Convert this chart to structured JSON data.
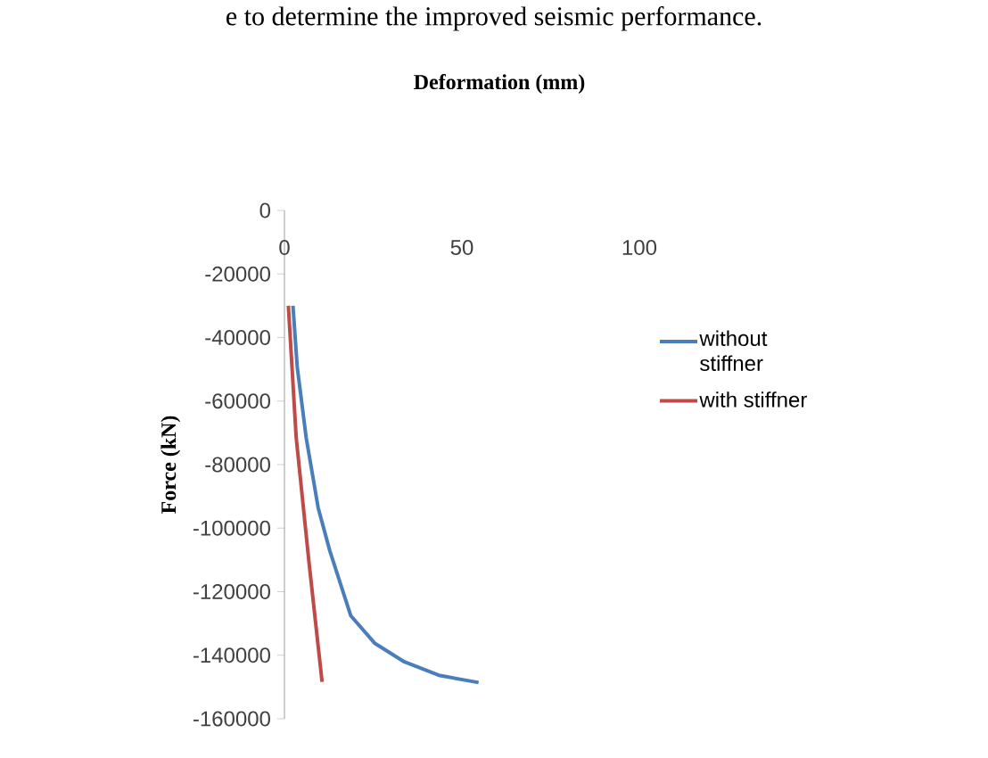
{
  "chart_data": {
    "type": "line",
    "title": "Deformation (mm)",
    "ylabel": "Force (kN)",
    "annotations": [
      "e to determine the improved seismic performance."
    ],
    "xlim": [
      0,
      100
    ],
    "xticks": [
      0,
      50,
      100
    ],
    "ylim": [
      -160000,
      0
    ],
    "yticks": [
      -160000,
      -140000,
      -120000,
      -100000,
      -80000,
      -60000,
      -40000,
      -20000,
      0
    ],
    "legend": "right",
    "grid": false,
    "series": [
      {
        "name": "without stiffner",
        "color": "#4a7ebb",
        "x": [
          2.4,
          3.6,
          6.1,
          9.5,
          12.8,
          18.7,
          25.4,
          33.8,
          43.8,
          54.7
        ],
        "values": [
          -30000,
          -49300,
          -71400,
          -93600,
          -107200,
          -127600,
          -136200,
          -142100,
          -146400,
          -148600
        ]
      },
      {
        "name": "with stiffner",
        "color": "#be4b48",
        "x": [
          1.1,
          3.3,
          6.9,
          10.6
        ],
        "values": [
          -30000,
          -71400,
          -110600,
          -148400
        ]
      }
    ]
  }
}
